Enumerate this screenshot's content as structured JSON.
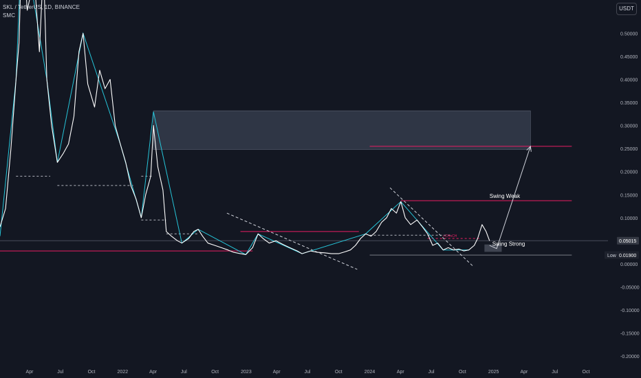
{
  "header": {
    "symbol_line": "SKL / TetherUS, 1D, BINANCE",
    "indicator": "SMC"
  },
  "currency_button": "USDT",
  "colors": {
    "background": "#131722",
    "price_line": "#ffffff",
    "swing_line": "#26c6da",
    "pink_level": "#e91e63",
    "gray_level": "#787b86",
    "zone_fill": "#3a4152",
    "label_badge": "#363a45",
    "axis_text": "#b2b5be"
  },
  "annotations": {
    "swing_weak": "Swing Weak",
    "swing_strong": "Swing Strong",
    "choch": "i-CHoCH",
    "price_badge": "0.05015",
    "low_tag": "Low",
    "low_value": "0.01900"
  },
  "chart_data": {
    "type": "line",
    "title": "SKL / TetherUS, 1D, BINANCE",
    "y_ticks": [
      "0.50000",
      "0.45000",
      "0.40000",
      "0.35000",
      "0.30000",
      "0.25000",
      "0.20000",
      "0.15000",
      "0.10000",
      "0.05000",
      "0.00000",
      "-0.05000",
      "-0.10000",
      "-0.15000",
      "-0.20000"
    ],
    "ylim": [
      -0.205,
      0.56
    ],
    "x_ticks": [
      "Apr",
      "Jul",
      "Oct",
      "2022",
      "Apr",
      "Jul",
      "Oct",
      "2023",
      "Apr",
      "Jul",
      "Oct",
      "2024",
      "Apr",
      "Jul",
      "Oct",
      "2025",
      "Apr",
      "Jul",
      "Oct"
    ],
    "x_tick_dates": [
      "2021-04-01",
      "2021-07-01",
      "2021-10-01",
      "2022-01-01",
      "2022-04-01",
      "2022-07-01",
      "2022-10-01",
      "2023-01-01",
      "2023-04-01",
      "2023-07-01",
      "2023-10-01",
      "2024-01-01",
      "2024-04-01",
      "2024-07-01",
      "2024-10-01",
      "2025-01-01",
      "2025-04-01",
      "2025-07-01",
      "2025-10-01"
    ],
    "series": [
      {
        "values": [
          [
            "2021-01-01",
            0.08
          ],
          [
            "2021-01-20",
            0.12
          ],
          [
            "2021-02-05",
            0.25
          ],
          [
            "2021-02-20",
            0.4
          ],
          [
            "2021-03-01",
            0.48
          ],
          [
            "2021-03-10",
            0.72
          ],
          [
            "2021-03-25",
            0.55
          ],
          [
            "2021-04-15",
            0.62
          ],
          [
            "2021-04-30",
            0.46
          ],
          [
            "2021-05-12",
            0.65
          ],
          [
            "2021-05-22",
            0.4
          ],
          [
            "2021-06-05",
            0.3
          ],
          [
            "2021-06-22",
            0.22
          ],
          [
            "2021-07-10",
            0.24
          ],
          [
            "2021-07-25",
            0.26
          ],
          [
            "2021-08-10",
            0.32
          ],
          [
            "2021-08-25",
            0.46
          ],
          [
            "2021-09-06",
            0.5
          ],
          [
            "2021-09-20",
            0.39
          ],
          [
            "2021-10-10",
            0.34
          ],
          [
            "2021-10-25",
            0.42
          ],
          [
            "2021-11-10",
            0.38
          ],
          [
            "2021-11-25",
            0.4
          ],
          [
            "2021-12-10",
            0.3
          ],
          [
            "2021-12-25",
            0.26
          ],
          [
            "2022-01-10",
            0.22
          ],
          [
            "2022-01-25",
            0.17
          ],
          [
            "2022-02-10",
            0.14
          ],
          [
            "2022-02-25",
            0.1
          ],
          [
            "2022-03-10",
            0.15
          ],
          [
            "2022-03-25",
            0.19
          ],
          [
            "2022-04-02",
            0.3
          ],
          [
            "2022-04-15",
            0.21
          ],
          [
            "2022-04-30",
            0.16
          ],
          [
            "2022-05-10",
            0.07
          ],
          [
            "2022-05-25",
            0.06
          ],
          [
            "2022-06-12",
            0.05
          ],
          [
            "2022-06-25",
            0.045
          ],
          [
            "2022-07-15",
            0.055
          ],
          [
            "2022-07-30",
            0.07
          ],
          [
            "2022-08-12",
            0.075
          ],
          [
            "2022-08-25",
            0.06
          ],
          [
            "2022-09-10",
            0.045
          ],
          [
            "2022-09-30",
            0.04
          ],
          [
            "2022-10-20",
            0.035
          ],
          [
            "2022-11-08",
            0.03
          ],
          [
            "2022-11-25",
            0.025
          ],
          [
            "2022-12-15",
            0.022
          ],
          [
            "2022-12-31",
            0.02
          ],
          [
            "2023-01-20",
            0.035
          ],
          [
            "2023-02-05",
            0.065
          ],
          [
            "2023-02-20",
            0.055
          ],
          [
            "2023-03-10",
            0.045
          ],
          [
            "2023-03-30",
            0.05
          ],
          [
            "2023-04-20",
            0.042
          ],
          [
            "2023-05-10",
            0.035
          ],
          [
            "2023-06-01",
            0.028
          ],
          [
            "2023-06-15",
            0.022
          ],
          [
            "2023-07-10",
            0.028
          ],
          [
            "2023-07-30",
            0.025
          ],
          [
            "2023-08-20",
            0.024
          ],
          [
            "2023-09-10",
            0.022
          ],
          [
            "2023-10-01",
            0.022
          ],
          [
            "2023-10-20",
            0.026
          ],
          [
            "2023-11-05",
            0.03
          ],
          [
            "2023-11-20",
            0.04
          ],
          [
            "2023-12-05",
            0.055
          ],
          [
            "2023-12-20",
            0.065
          ],
          [
            "2024-01-05",
            0.06
          ],
          [
            "2024-01-20",
            0.07
          ],
          [
            "2024-02-05",
            0.09
          ],
          [
            "2024-02-20",
            0.1
          ],
          [
            "2024-03-05",
            0.12
          ],
          [
            "2024-03-20",
            0.11
          ],
          [
            "2024-04-02",
            0.135
          ],
          [
            "2024-04-15",
            0.1
          ],
          [
            "2024-05-01",
            0.085
          ],
          [
            "2024-05-20",
            0.095
          ],
          [
            "2024-06-05",
            0.08
          ],
          [
            "2024-06-20",
            0.065
          ],
          [
            "2024-07-05",
            0.04
          ],
          [
            "2024-07-20",
            0.045
          ],
          [
            "2024-08-05",
            0.03
          ],
          [
            "2024-08-20",
            0.035
          ],
          [
            "2024-09-05",
            0.03
          ],
          [
            "2024-09-20",
            0.032
          ],
          [
            "2024-10-05",
            0.028
          ],
          [
            "2024-10-20",
            0.03
          ],
          [
            "2024-11-05",
            0.04
          ],
          [
            "2024-11-15",
            0.055
          ],
          [
            "2024-11-28",
            0.085
          ],
          [
            "2024-12-10",
            0.07
          ],
          [
            "2024-12-20",
            0.05
          ]
        ]
      },
      {
        "values": [
          [
            "2021-01-01",
            0.06
          ],
          [
            "2021-02-20",
            0.4
          ],
          [
            "2021-03-10",
            0.72
          ],
          [
            "2021-05-22",
            0.4
          ],
          [
            "2021-06-22",
            0.22
          ],
          [
            "2021-09-06",
            0.5
          ],
          [
            "2021-12-25",
            0.26
          ],
          [
            "2022-02-25",
            0.1
          ],
          [
            "2022-04-02",
            0.33
          ],
          [
            "2022-06-25",
            0.045
          ],
          [
            "2022-08-12",
            0.075
          ],
          [
            "2022-12-31",
            0.02
          ],
          [
            "2023-02-05",
            0.065
          ],
          [
            "2023-06-15",
            0.022
          ],
          [
            "2023-12-20",
            0.065
          ],
          [
            "2024-04-02",
            0.135
          ],
          [
            "2024-08-05",
            0.03
          ],
          [
            "2024-10-20",
            0.03
          ]
        ]
      }
    ],
    "zones": [
      {
        "x": [
          "2022-04-02",
          "2025-04-20"
        ],
        "y": [
          0.248,
          0.332
        ]
      }
    ],
    "levels": [
      {
        "label": "Swing Weak",
        "y": 0.137,
        "x": [
          "2024-04-02",
          "2025-08-20"
        ],
        "style": "solid",
        "color": "#e91e63"
      },
      {
        "label": "",
        "y": 0.255,
        "x": [
          "2024-01-01",
          "2025-08-20"
        ],
        "style": "solid",
        "color": "#e91e63"
      },
      {
        "label": "Swing Strong",
        "y": 0.019,
        "x": [
          "2024-01-01",
          "2025-08-20"
        ],
        "style": "solid",
        "color": "#787b86"
      },
      {
        "label": "",
        "y": 0.07,
        "x": [
          "2022-12-15",
          "2023-11-30"
        ],
        "style": "solid",
        "color": "#e91e63"
      },
      {
        "label": "",
        "y": 0.028,
        "x": [
          "2020-12-01",
          "2023-01-20"
        ],
        "style": "solid",
        "color": "#e91e63"
      },
      {
        "label": "",
        "y": 0.05015,
        "x": [
          "2020-12-01",
          "2025-12-31"
        ],
        "style": "solid",
        "color": "#4a4e5a"
      },
      {
        "label": "",
        "y": 0.19,
        "x": [
          "2021-02-20",
          "2021-06-01"
        ],
        "style": "dashed",
        "color": "#b2b5be"
      },
      {
        "label": "",
        "y": 0.17,
        "x": [
          "2021-06-22",
          "2022-02-01"
        ],
        "style": "dashed",
        "color": "#b2b5be"
      },
      {
        "label": "",
        "y": 0.19,
        "x": [
          "2022-02-25",
          "2022-04-02"
        ],
        "style": "dashed",
        "color": "#b2b5be"
      },
      {
        "label": "",
        "y": 0.095,
        "x": [
          "2022-02-25",
          "2022-05-10"
        ],
        "style": "dashed",
        "color": "#b2b5be"
      },
      {
        "label": "",
        "y": 0.065,
        "x": [
          "2022-05-10",
          "2022-08-12"
        ],
        "style": "dashed",
        "color": "#b2b5be"
      },
      {
        "label": "",
        "y": 0.062,
        "x": [
          "2024-01-01",
          "2024-09-01"
        ],
        "style": "dashed",
        "color": "#b2b5be"
      },
      {
        "label": "i-CHoCH",
        "y": 0.055,
        "x": [
          "2024-06-20",
          "2024-11-20"
        ],
        "style": "dashed",
        "color": "#e91e63"
      }
    ],
    "trendlines": [
      {
        "x": [
          "2022-11-05",
          "2023-11-25"
        ],
        "y": [
          0.11,
          -0.012
        ]
      },
      {
        "x": [
          "2024-03-01",
          "2024-11-01"
        ],
        "y": [
          0.165,
          -0.005
        ]
      }
    ],
    "projection": {
      "x": [
        "2024-12-20",
        "2025-01-10",
        "2025-04-20"
      ],
      "y": [
        0.04,
        0.033,
        0.255
      ]
    },
    "box": {
      "x": [
        "2024-12-05",
        "2025-01-25"
      ],
      "y": [
        0.042,
        0.026
      ]
    }
  }
}
